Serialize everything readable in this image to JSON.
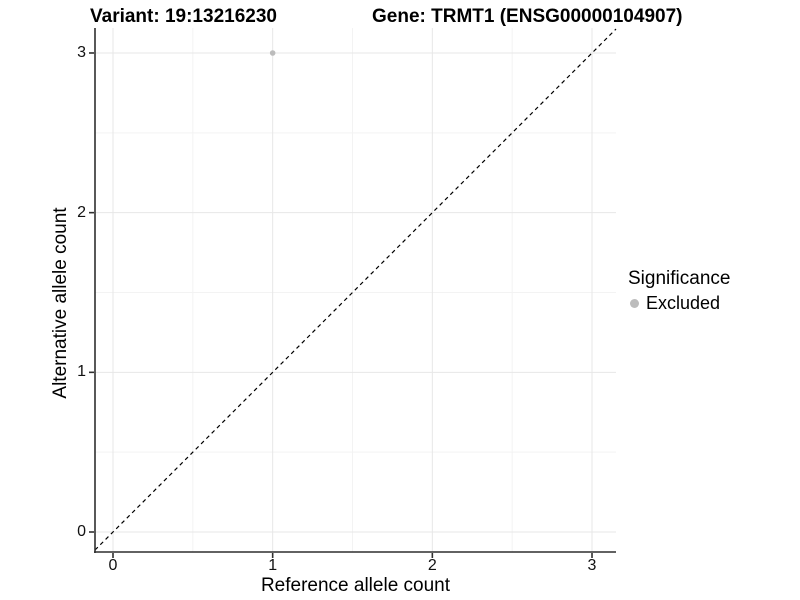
{
  "figure": {
    "title_variant": "Variant: 19:13216230",
    "title_gene": "Gene: TRMT1 (ENSG00000104907)"
  },
  "axes": {
    "x_label": "Reference allele count",
    "y_label": "Alternative allele count"
  },
  "legend": {
    "title": "Significance",
    "items": [
      {
        "label": "Excluded",
        "color": "#bcbcbc"
      }
    ]
  },
  "colors": {
    "grid_major": "#e7e7e7",
    "grid_minor": "#f3f3f3",
    "axis_line": "#2f2f2f",
    "tick_mark": "#2f2f2f",
    "reference_line": "#000000"
  },
  "chart_data": {
    "type": "scatter",
    "title": "Variant: 19:13216230   Gene: TRMT1 (ENSG00000104907)",
    "xlabel": "Reference allele count",
    "ylabel": "Alternative allele count",
    "xlim": [
      -0.15,
      3.15
    ],
    "ylim": [
      -0.15,
      3.15
    ],
    "x_ticks": [
      0,
      1,
      2,
      3
    ],
    "y_ticks": [
      0,
      1,
      2,
      3
    ],
    "x_minor_ticks": [
      0.5,
      1.5,
      2.5
    ],
    "y_minor_ticks": [
      0.5,
      1.5,
      2.5
    ],
    "grid": true,
    "legend_position": "right",
    "series": [
      {
        "name": "Excluded",
        "color": "#bcbcbc",
        "points": [
          {
            "x": 1,
            "y": 3
          }
        ]
      }
    ],
    "reference_line": {
      "type": "abline",
      "slope": 1,
      "intercept": 0,
      "style": "dashed"
    }
  }
}
